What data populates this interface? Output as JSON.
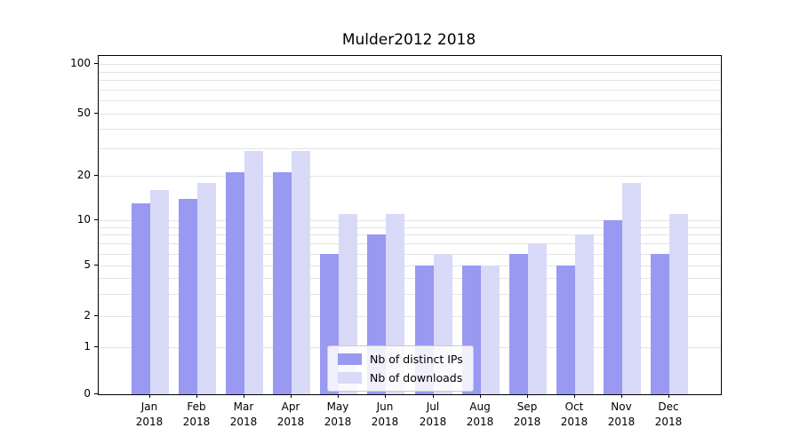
{
  "title": "Mulder2012 2018",
  "chart_data": {
    "type": "bar",
    "title": "Mulder2012 2018",
    "scale": "symlog",
    "grid": true,
    "legend_position": "lower center",
    "year": "2018",
    "categories": [
      "Jan",
      "Feb",
      "Mar",
      "Apr",
      "May",
      "Jun",
      "Jul",
      "Aug",
      "Sep",
      "Oct",
      "Nov",
      "Dec"
    ],
    "series": [
      {
        "name": "Nb of distinct IPs",
        "color": "#9999f2",
        "values": [
          13,
          14,
          21,
          21,
          6,
          8,
          5,
          5,
          6,
          5,
          10,
          6
        ]
      },
      {
        "name": "Nb of downloads",
        "color": "#d9d9f8",
        "values": [
          16,
          18,
          29,
          29,
          11,
          11,
          6,
          5,
          7,
          8,
          18,
          11
        ]
      }
    ],
    "yticks": [
      0,
      1,
      2,
      5,
      10,
      20,
      50,
      100
    ],
    "ylim": [
      0,
      100
    ],
    "grid_values": [
      1,
      2,
      3,
      4,
      5,
      6,
      7,
      8,
      9,
      10,
      20,
      30,
      40,
      50,
      60,
      70,
      80,
      90,
      100
    ],
    "xlabel": "",
    "ylabel": ""
  },
  "colors": {
    "grid": "#e4e4e4",
    "spine": "#000000",
    "legend_border": "#cccccc",
    "background": "#ffffff"
  }
}
